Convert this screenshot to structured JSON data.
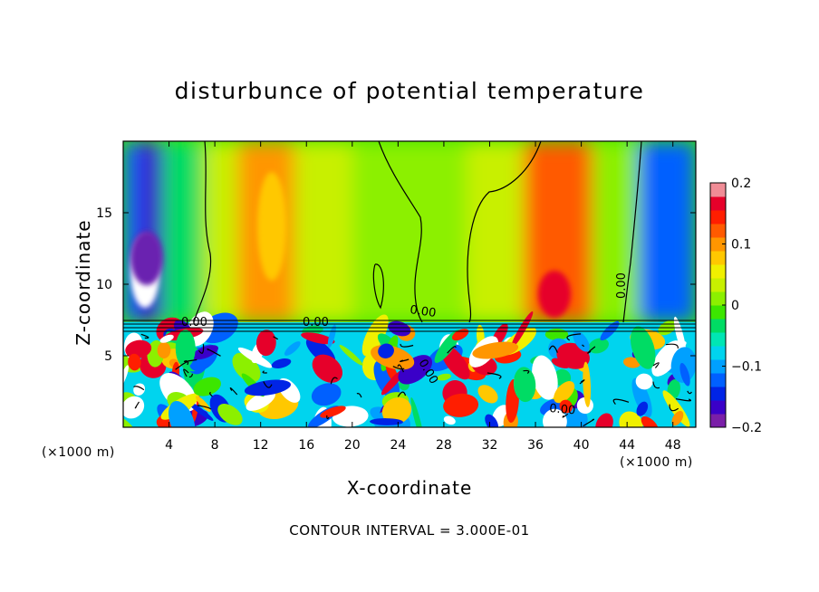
{
  "chart_data": {
    "type": "heatmap",
    "title": "disturbunce of potential temperature",
    "xlabel": "X-coordinate",
    "ylabel": "Z-coordinate",
    "x_unit_left": "(×1000 m)",
    "x_unit_right": "(×1000 m)",
    "xlim": [
      0,
      50
    ],
    "ylim": [
      0,
      20
    ],
    "x_ticks": [
      4,
      8,
      12,
      16,
      20,
      24,
      28,
      32,
      36,
      40,
      44,
      48
    ],
    "y_ticks": [
      5,
      10,
      15
    ],
    "colorbar": {
      "range": [
        -0.2,
        0.2
      ],
      "tick_values": [
        0.2,
        0.1,
        0,
        -0.1,
        -0.2
      ],
      "tick_labels": [
        "0.2",
        "0.1",
        "0",
        "−0.1",
        "−0.2"
      ],
      "colors": [
        "#7a1fa8",
        "#3a00c8",
        "#0024e6",
        "#0060ff",
        "#00a0ff",
        "#00d4ee",
        "#00e6b4",
        "#00dc64",
        "#3ce600",
        "#8cf000",
        "#c8f000",
        "#f0f000",
        "#ffc800",
        "#ff9600",
        "#ff5a00",
        "#ff1e00",
        "#e6002a",
        "#f08c96"
      ]
    },
    "contour_labels": [
      "0.00",
      "0.00",
      "0.00",
      "0.00",
      "0.00",
      "0.00"
    ],
    "footnote": "CONTOUR INTERVAL = 3.000E-01",
    "upper_layer_regions": [
      {
        "x": [
          0,
          1.5
        ],
        "value": -0.12
      },
      {
        "x": [
          1.5,
          3.5
        ],
        "value": -0.16
      },
      {
        "x": [
          3.5,
          7
        ],
        "value": -0.04
      },
      {
        "x": [
          7,
          10
        ],
        "value": 0.03
      },
      {
        "x": [
          10,
          15
        ],
        "value": 0.1
      },
      {
        "x": [
          15,
          20
        ],
        "value": 0.04
      },
      {
        "x": [
          20,
          30
        ],
        "value": 0.0
      },
      {
        "x": [
          30,
          35
        ],
        "value": 0.03
      },
      {
        "x": [
          35,
          41
        ],
        "value": 0.12
      },
      {
        "x": [
          41,
          45
        ],
        "value": 0.02
      },
      {
        "x": [
          45,
          50
        ],
        "value": -0.13
      }
    ]
  }
}
